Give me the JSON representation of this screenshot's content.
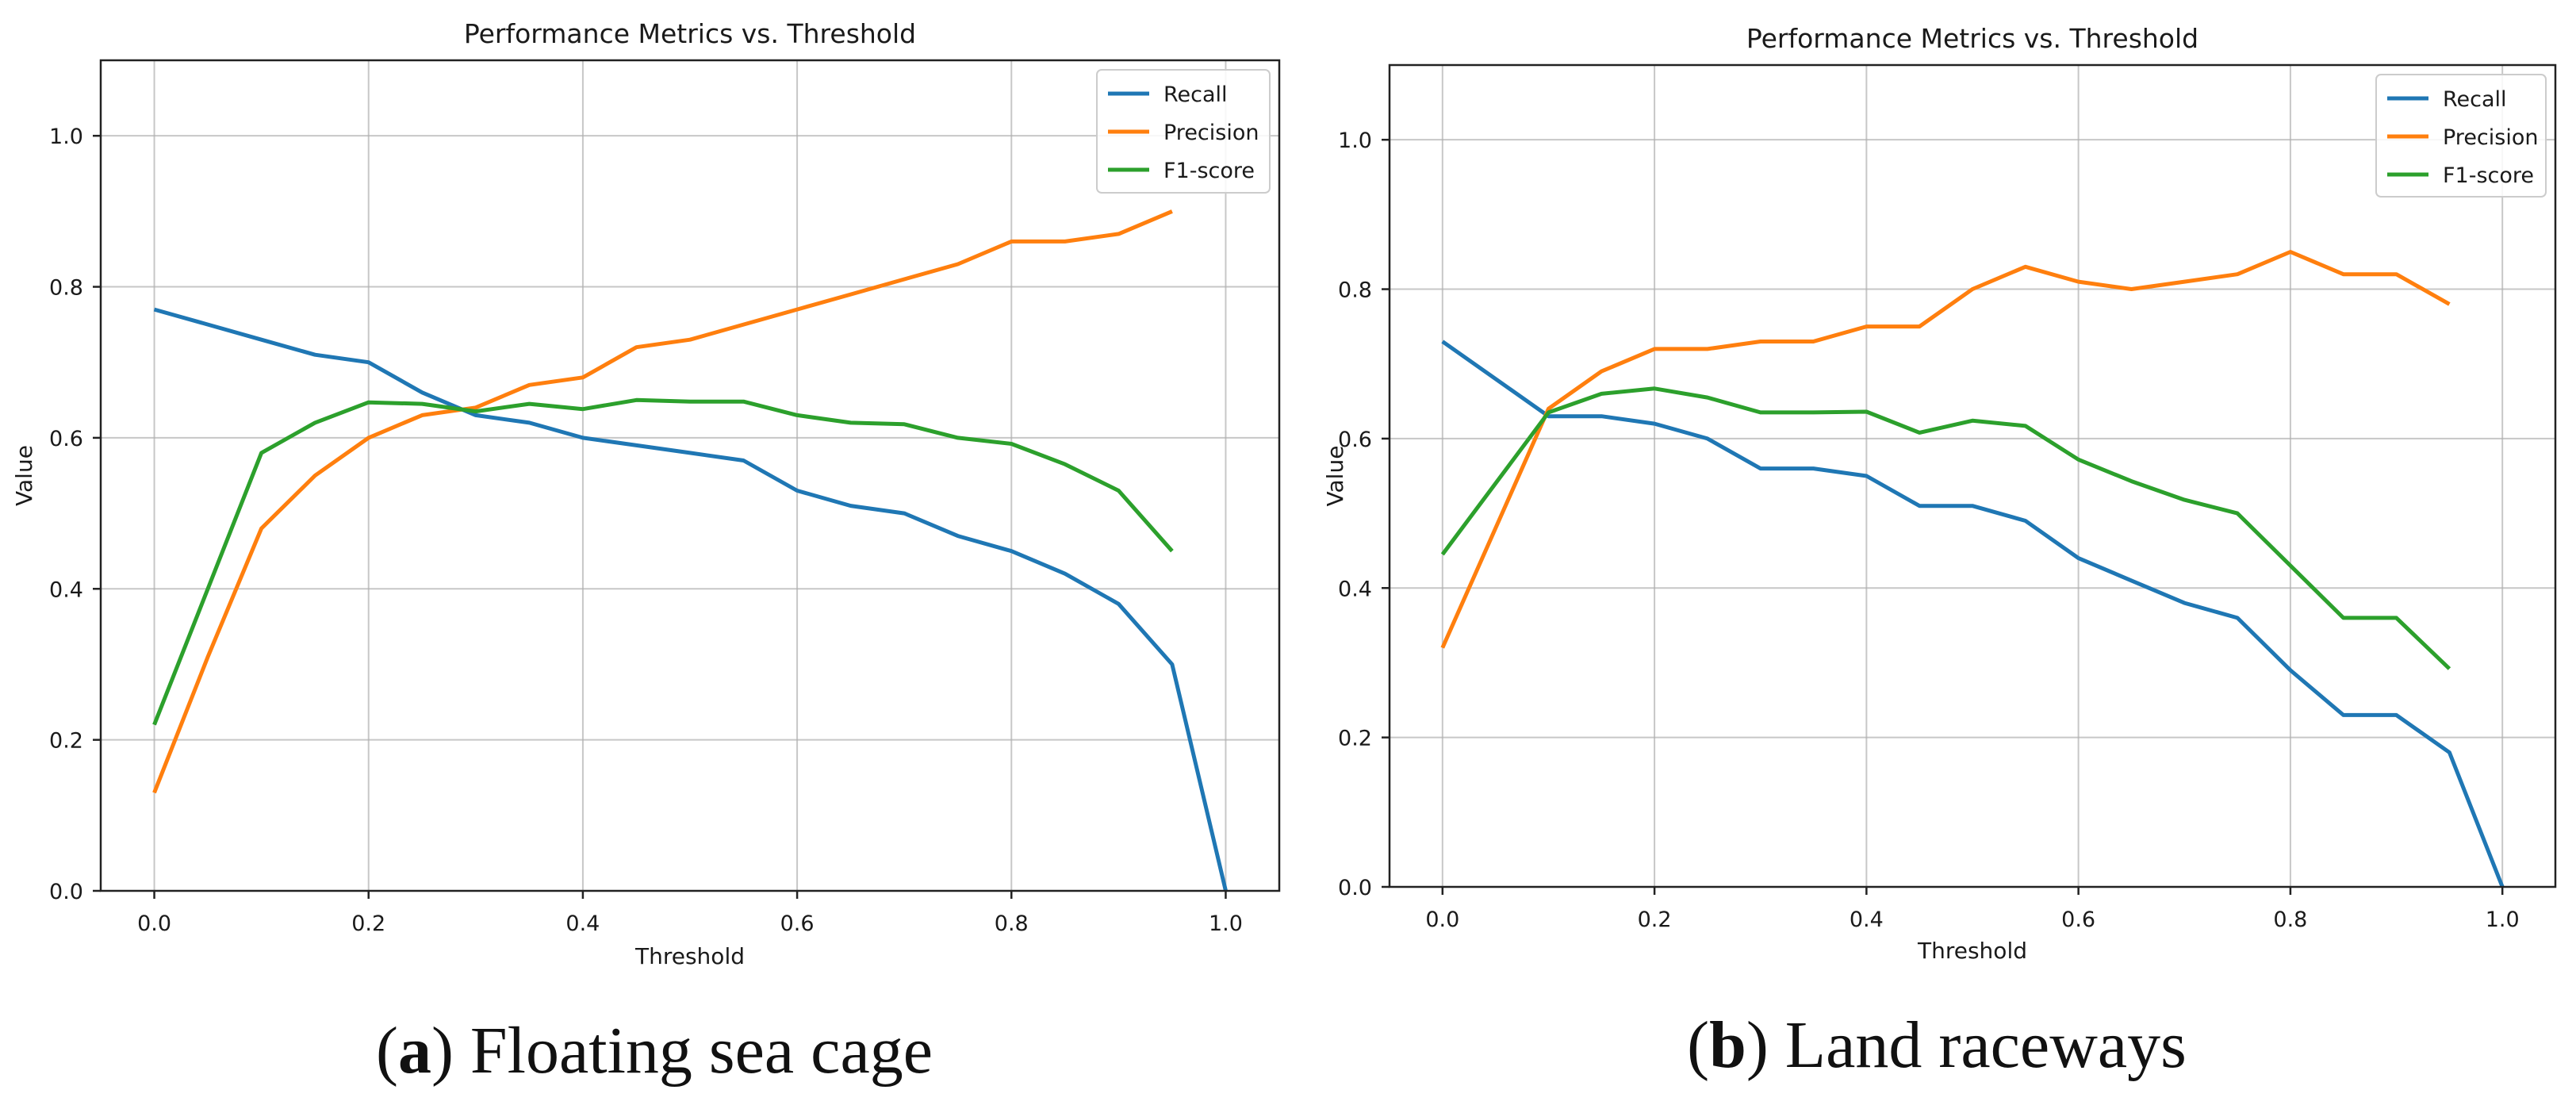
{
  "chart_data": [
    {
      "type": "line",
      "title": "Performance Metrics vs. Threshold",
      "xlabel": "Threshold",
      "ylabel": "Value",
      "xlim": [
        -0.05,
        1.05
      ],
      "ylim": [
        0.0,
        1.1
      ],
      "xticks": [
        "0.0",
        "0.2",
        "0.4",
        "0.6",
        "0.8",
        "1.0"
      ],
      "yticks": [
        "0.0",
        "0.2",
        "0.4",
        "0.6",
        "0.8",
        "1.0"
      ],
      "grid": true,
      "legend_position": "top-right",
      "caption_label": "a",
      "caption_text": ") Floating sea cage",
      "series": [
        {
          "name": "Recall",
          "color": "#1f77b4",
          "x": [
            0.0,
            0.05,
            0.1,
            0.15,
            0.2,
            0.25,
            0.3,
            0.35,
            0.4,
            0.45,
            0.5,
            0.55,
            0.6,
            0.65,
            0.7,
            0.75,
            0.8,
            0.85,
            0.9,
            0.95,
            1.0
          ],
          "y": [
            0.77,
            0.75,
            0.73,
            0.71,
            0.7,
            0.66,
            0.63,
            0.62,
            0.6,
            0.59,
            0.58,
            0.57,
            0.53,
            0.51,
            0.5,
            0.47,
            0.45,
            0.42,
            0.38,
            0.3,
            0.0
          ]
        },
        {
          "name": "Precision",
          "color": "#ff7f0e",
          "x": [
            0.0,
            0.05,
            0.1,
            0.15,
            0.2,
            0.25,
            0.3,
            0.35,
            0.4,
            0.45,
            0.5,
            0.55,
            0.6,
            0.65,
            0.7,
            0.75,
            0.8,
            0.85,
            0.9,
            0.95
          ],
          "y": [
            0.13,
            0.31,
            0.48,
            0.55,
            0.6,
            0.63,
            0.64,
            0.67,
            0.68,
            0.72,
            0.73,
            0.75,
            0.77,
            0.79,
            0.81,
            0.83,
            0.86,
            0.86,
            0.87,
            0.9
          ]
        },
        {
          "name": "F1-score",
          "color": "#2ca02c",
          "x": [
            0.0,
            0.1,
            0.15,
            0.2,
            0.25,
            0.3,
            0.35,
            0.4,
            0.45,
            0.5,
            0.55,
            0.6,
            0.65,
            0.7,
            0.75,
            0.8,
            0.85,
            0.9,
            0.95
          ],
          "y": [
            0.22,
            0.58,
            0.62,
            0.647,
            0.645,
            0.635,
            0.645,
            0.638,
            0.65,
            0.648,
            0.648,
            0.63,
            0.62,
            0.618,
            0.6,
            0.592,
            0.565,
            0.53,
            0.45
          ]
        }
      ]
    },
    {
      "type": "line",
      "title": "Performance Metrics vs. Threshold",
      "xlabel": "Threshold",
      "ylabel": "Value",
      "xlim": [
        -0.05,
        1.05
      ],
      "ylim": [
        0.0,
        1.1
      ],
      "xticks": [
        "0.0",
        "0.2",
        "0.4",
        "0.6",
        "0.8",
        "1.0"
      ],
      "yticks": [
        "0.0",
        "0.2",
        "0.4",
        "0.6",
        "0.8",
        "1.0"
      ],
      "grid": true,
      "legend_position": "top-right",
      "caption_label": "b",
      "caption_text": ") Land raceways",
      "series": [
        {
          "name": "Recall",
          "color": "#1f77b4",
          "x": [
            0.0,
            0.1,
            0.15,
            0.2,
            0.25,
            0.3,
            0.35,
            0.4,
            0.45,
            0.5,
            0.55,
            0.6,
            0.65,
            0.7,
            0.75,
            0.8,
            0.85,
            0.9,
            0.95,
            1.0
          ],
          "y": [
            0.73,
            0.63,
            0.63,
            0.62,
            0.6,
            0.56,
            0.56,
            0.55,
            0.51,
            0.51,
            0.49,
            0.44,
            0.41,
            0.38,
            0.36,
            0.29,
            0.23,
            0.23,
            0.18,
            0.0
          ]
        },
        {
          "name": "Precision",
          "color": "#ff7f0e",
          "x": [
            0.0,
            0.1,
            0.15,
            0.2,
            0.25,
            0.3,
            0.35,
            0.4,
            0.45,
            0.5,
            0.55,
            0.6,
            0.65,
            0.7,
            0.75,
            0.8,
            0.85,
            0.9,
            0.95
          ],
          "y": [
            0.32,
            0.64,
            0.69,
            0.72,
            0.72,
            0.73,
            0.73,
            0.75,
            0.75,
            0.8,
            0.83,
            0.81,
            0.8,
            0.81,
            0.82,
            0.85,
            0.82,
            0.82,
            0.78
          ]
        },
        {
          "name": "F1-score",
          "color": "#2ca02c",
          "x": [
            0.0,
            0.1,
            0.15,
            0.2,
            0.25,
            0.3,
            0.35,
            0.4,
            0.45,
            0.5,
            0.55,
            0.6,
            0.65,
            0.7,
            0.75,
            0.8,
            0.85,
            0.9,
            0.95
          ],
          "y": [
            0.445,
            0.635,
            0.66,
            0.667,
            0.655,
            0.635,
            0.635,
            0.636,
            0.608,
            0.624,
            0.617,
            0.572,
            0.543,
            0.518,
            0.5,
            0.43,
            0.36,
            0.36,
            0.292
          ]
        }
      ]
    }
  ]
}
